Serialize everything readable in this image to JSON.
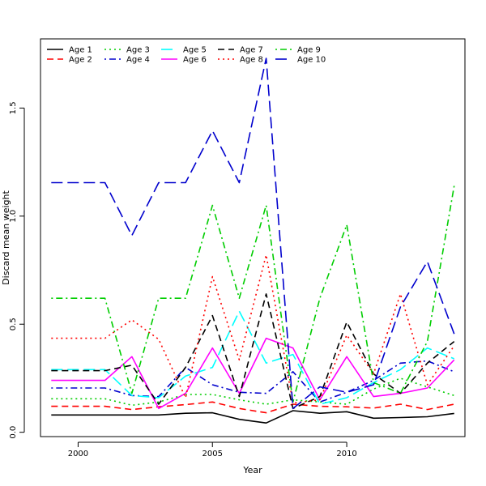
{
  "chart_data": {
    "type": "line",
    "title": "",
    "xlabel": "Year",
    "ylabel": "Discard mean weight",
    "xlim": [
      1998.6,
      2014.4
    ],
    "ylim": [
      -0.02,
      1.82
    ],
    "x_ticks": [
      {
        "value": 2000,
        "label": "2000"
      },
      {
        "value": 2005,
        "label": "2005"
      },
      {
        "value": 2010,
        "label": "2010"
      }
    ],
    "y_ticks": [
      {
        "value": 0.0,
        "label": "0.0"
      },
      {
        "value": 0.5,
        "label": "0.5"
      },
      {
        "value": 1.0,
        "label": "1.0"
      },
      {
        "value": 1.5,
        "label": "1.5"
      }
    ],
    "grid": false,
    "legend_position": "top-left",
    "x": [
      1999,
      2000,
      2001,
      2002,
      2003,
      2004,
      2005,
      2006,
      2007,
      2008,
      2009,
      2010,
      2011,
      2012,
      2013,
      2014
    ],
    "series": [
      {
        "name": "Age 1",
        "color": "#000000",
        "dash": "solid",
        "values": [
          0.08,
          0.08,
          0.08,
          0.08,
          0.08,
          0.088,
          0.09,
          0.06,
          0.043,
          0.1,
          0.088,
          0.095,
          0.065,
          0.068,
          0.072,
          0.087
        ]
      },
      {
        "name": "Age 2",
        "color": "#FF0000",
        "dash": "dashed",
        "values": [
          0.12,
          0.12,
          0.12,
          0.105,
          0.118,
          0.128,
          0.14,
          0.11,
          0.09,
          0.13,
          0.12,
          0.118,
          0.112,
          0.13,
          0.105,
          0.13
        ]
      },
      {
        "name": "Age 3",
        "color": "#00CD00",
        "dash": "dotted",
        "values": [
          0.155,
          0.155,
          0.155,
          0.125,
          0.14,
          0.175,
          0.175,
          0.15,
          0.13,
          0.15,
          0.14,
          0.13,
          0.2,
          0.25,
          0.21,
          0.17
        ]
      },
      {
        "name": "Age 4",
        "color": "#0000CD",
        "dash": "dotdash",
        "values": [
          0.205,
          0.205,
          0.205,
          0.17,
          0.165,
          0.3,
          0.22,
          0.185,
          0.18,
          0.28,
          0.14,
          0.185,
          0.24,
          0.32,
          0.33,
          0.28
        ]
      },
      {
        "name": "Age 5",
        "color": "#00FFFF",
        "dash": "longdash",
        "values": [
          0.29,
          0.29,
          0.29,
          0.17,
          0.16,
          0.26,
          0.3,
          0.56,
          0.32,
          0.36,
          0.13,
          0.16,
          0.23,
          0.29,
          0.39,
          0.34
        ]
      },
      {
        "name": "Age 6",
        "color": "#FF00FF",
        "dash": "solid",
        "values": [
          0.24,
          0.24,
          0.24,
          0.35,
          0.11,
          0.18,
          0.39,
          0.18,
          0.435,
          0.39,
          0.15,
          0.35,
          0.165,
          0.18,
          0.205,
          0.335
        ]
      },
      {
        "name": "Age 7",
        "color": "#000000",
        "dash": "dashed",
        "values": [
          0.285,
          0.285,
          0.285,
          0.31,
          0.13,
          0.3,
          0.54,
          0.165,
          0.64,
          0.11,
          0.165,
          0.51,
          0.27,
          0.18,
          0.32,
          0.42
        ]
      },
      {
        "name": "Age 8",
        "color": "#FF0000",
        "dash": "dotted",
        "values": [
          0.435,
          0.435,
          0.435,
          0.52,
          0.43,
          0.16,
          0.72,
          0.335,
          0.82,
          0.135,
          0.15,
          0.45,
          0.27,
          0.64,
          0.22,
          0.4
        ]
      },
      {
        "name": "Age 9",
        "color": "#00CD00",
        "dash": "dotdash",
        "values": [
          0.62,
          0.62,
          0.62,
          0.18,
          0.62,
          0.62,
          1.05,
          0.62,
          1.05,
          0.14,
          0.62,
          0.96,
          0.23,
          0.18,
          0.42,
          1.14
        ]
      },
      {
        "name": "Age 10",
        "color": "#0000CD",
        "dash": "longdash",
        "values": [
          1.155,
          1.155,
          1.155,
          0.91,
          1.155,
          1.155,
          1.395,
          1.155,
          1.73,
          0.11,
          0.21,
          0.185,
          0.22,
          0.58,
          0.79,
          0.455
        ]
      }
    ]
  }
}
